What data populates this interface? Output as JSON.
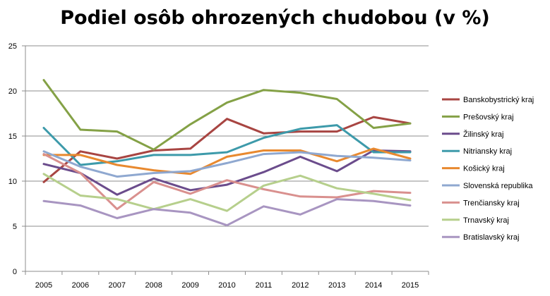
{
  "chart_data": {
    "type": "line",
    "title": "Podiel osôb ohrozených chudobou (v %)",
    "xlabel": "",
    "ylabel": "",
    "x": [
      "2005",
      "2006",
      "2007",
      "2008",
      "2009",
      "2010",
      "2011",
      "2012",
      "2013",
      "2014",
      "2015"
    ],
    "ylim": [
      0,
      25
    ],
    "yticks": [
      "0",
      "5",
      "10",
      "15",
      "20",
      "25"
    ],
    "grid": "horizontal",
    "legend_position": "right",
    "series": [
      {
        "name": "Banskobystrický kraj",
        "color": "#a84542",
        "values": [
          9.9,
          13.3,
          12.5,
          13.4,
          13.6,
          16.9,
          15.3,
          15.5,
          15.5,
          17.1,
          16.4
        ]
      },
      {
        "name": "Prešovský kraj",
        "color": "#84a146",
        "values": [
          21.2,
          15.7,
          15.5,
          13.5,
          16.3,
          18.7,
          20.1,
          19.8,
          19.1,
          15.9,
          16.4
        ]
      },
      {
        "name": "Žilinský kraj",
        "color": "#6b4c8c",
        "values": [
          11.9,
          10.9,
          8.5,
          10.3,
          9.0,
          9.6,
          11.0,
          12.7,
          11.1,
          13.4,
          13.3
        ]
      },
      {
        "name": "Nitriansky kraj",
        "color": "#3d9aaa",
        "values": [
          15.9,
          11.8,
          12.2,
          12.9,
          12.9,
          13.2,
          14.8,
          15.8,
          16.2,
          13.2,
          13.2
        ]
      },
      {
        "name": "Košický kraj",
        "color": "#e8892f",
        "values": [
          12.9,
          12.9,
          11.8,
          11.2,
          10.8,
          12.7,
          13.4,
          13.4,
          12.2,
          13.6,
          12.5
        ]
      },
      {
        "name": "Slovenská republika",
        "color": "#8fa8d0",
        "values": [
          13.3,
          11.6,
          10.5,
          10.9,
          11.1,
          12.0,
          13.0,
          13.2,
          12.8,
          12.6,
          12.3
        ]
      },
      {
        "name": "Trenčiansky kraj",
        "color": "#d9908e",
        "values": [
          13.0,
          10.9,
          6.9,
          9.9,
          8.6,
          10.1,
          9.1,
          8.3,
          8.2,
          8.9,
          8.7
        ]
      },
      {
        "name": "Trnavský kraj",
        "color": "#b6cf8c",
        "values": [
          10.8,
          8.4,
          8.0,
          6.9,
          8.0,
          6.7,
          9.5,
          10.6,
          9.2,
          8.6,
          7.9
        ]
      },
      {
        "name": "Bratislavský kraj",
        "color": "#a895c1",
        "values": [
          7.8,
          7.3,
          5.9,
          6.9,
          6.5,
          5.1,
          7.2,
          6.3,
          8.0,
          7.8,
          7.3
        ]
      }
    ]
  }
}
